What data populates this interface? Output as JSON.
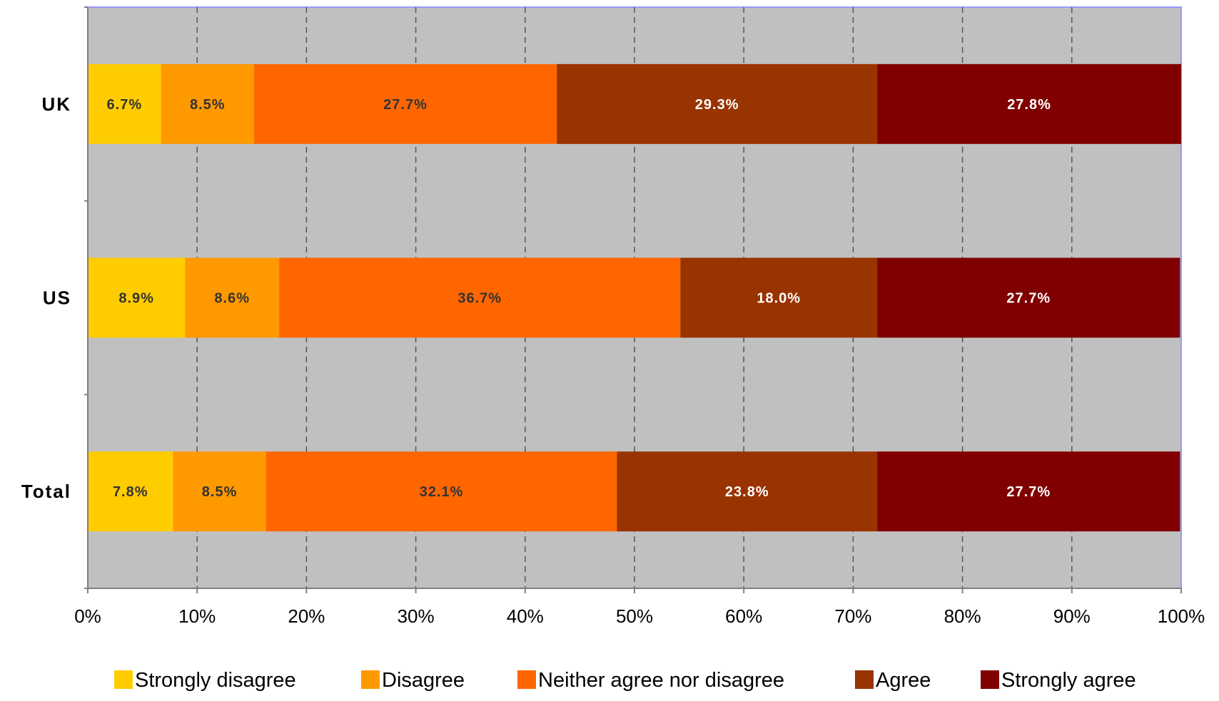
{
  "chart_data": {
    "type": "bar",
    "orientation": "horizontal",
    "stacked": true,
    "percent_stacked": true,
    "categories": [
      "UK",
      "US",
      "Total"
    ],
    "series": [
      {
        "name": "Strongly disagree",
        "color": "#FFCC00",
        "label_color": "#333333",
        "values": [
          6.7,
          8.9,
          7.8
        ],
        "labels": [
          "6.7%",
          "8.9%",
          "7.8%"
        ]
      },
      {
        "name": "Disagree",
        "color": "#FF9900",
        "label_color": "#333333",
        "values": [
          8.5,
          8.6,
          8.5
        ],
        "labels": [
          "8.5%",
          "8.6%",
          "8.5%"
        ]
      },
      {
        "name": "Neither agree nor disagree",
        "color": "#FF6600",
        "label_color": "#333333",
        "values": [
          27.7,
          36.7,
          32.1
        ],
        "labels": [
          "27.7%",
          "36.7%",
          "32.1%"
        ]
      },
      {
        "name": "Agree",
        "color": "#993300",
        "label_color": "#FFFFFF",
        "values": [
          29.3,
          18.0,
          23.8
        ],
        "labels": [
          "29.3%",
          "18.0%",
          "23.8%"
        ]
      },
      {
        "name": "Strongly agree",
        "color": "#800000",
        "label_color": "#FFFFFF",
        "values": [
          27.8,
          27.7,
          27.7
        ],
        "labels": [
          "27.8%",
          "27.7%",
          "27.7%"
        ]
      }
    ],
    "x_ticks": [
      "0%",
      "10%",
      "20%",
      "30%",
      "40%",
      "50%",
      "60%",
      "70%",
      "80%",
      "90%",
      "100%"
    ],
    "xlim": [
      0,
      100
    ],
    "grid": "vertical dashed",
    "plot_background": "#C0C0C0",
    "plot_border_color": "#9999FF",
    "legend_position": "bottom"
  }
}
